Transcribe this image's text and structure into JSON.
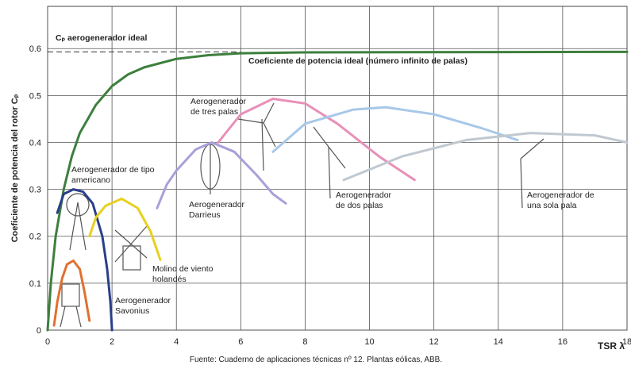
{
  "chart_data": {
    "type": "line",
    "ylabel": "Coeficiente de potencia del rotor Cₚ",
    "xlabel": "TSR λ",
    "source": "Fuente: Cuaderno de aplicaciones técnicas nº 12. Plantas eólicas, ABB.",
    "xlim": [
      0,
      18
    ],
    "xticks": [
      0,
      2,
      4,
      6,
      8,
      10,
      12,
      14,
      16,
      18
    ],
    "ylim": [
      0,
      0.69
    ],
    "yticks": [
      0,
      0.1,
      0.2,
      0.3,
      0.4,
      0.5,
      0.6
    ],
    "grid": true,
    "annotation": {
      "text": "Cₚ aerogenerador ideal",
      "value": 0.593
    },
    "series": [
      {
        "name": "Coeficiente de potencia ideal (número infinito de palas)",
        "color": "#3d7f3d",
        "x": [
          0,
          0.1,
          0.25,
          0.5,
          0.75,
          1,
          1.5,
          2,
          2.5,
          3,
          4,
          5,
          6,
          8,
          18
        ],
        "values": [
          0,
          0.1,
          0.2,
          0.3,
          0.37,
          0.42,
          0.48,
          0.52,
          0.545,
          0.56,
          0.578,
          0.586,
          0.59,
          0.592,
          0.593
        ]
      },
      {
        "name": "Aerogenerador Savonius",
        "color": "#e07030",
        "x": [
          0.2,
          0.3,
          0.45,
          0.6,
          0.8,
          1.0,
          1.15,
          1.3
        ],
        "values": [
          0.01,
          0.06,
          0.11,
          0.14,
          0.148,
          0.13,
          0.08,
          0.02
        ]
      },
      {
        "name": "Aerogenerador de tipo americano",
        "color": "#2a3f8a",
        "x": [
          0.3,
          0.5,
          0.8,
          1.1,
          1.4,
          1.7,
          1.85,
          1.95,
          2.0
        ],
        "values": [
          0.25,
          0.29,
          0.3,
          0.295,
          0.27,
          0.2,
          0.13,
          0.06,
          0
        ]
      },
      {
        "name": "Molino de viento holandés",
        "color": "#e6d020",
        "x": [
          1.3,
          1.5,
          1.8,
          2.3,
          2.8,
          3.2,
          3.5
        ],
        "values": [
          0.2,
          0.24,
          0.265,
          0.28,
          0.26,
          0.21,
          0.15
        ]
      },
      {
        "name": "Aerogenerador Darrieus",
        "color": "#a8a0d8",
        "x": [
          3.4,
          3.7,
          4.0,
          4.6,
          5.1,
          5.8,
          6.5,
          7.0,
          7.4
        ],
        "values": [
          0.26,
          0.31,
          0.34,
          0.385,
          0.4,
          0.38,
          0.33,
          0.29,
          0.27
        ]
      },
      {
        "name": "Aerogenerador de tres palas",
        "color": "#e890b8",
        "x": [
          5.3,
          6.0,
          7.0,
          8.0,
          9.0,
          10.3,
          11.4
        ],
        "values": [
          0.4,
          0.46,
          0.493,
          0.483,
          0.44,
          0.37,
          0.32
        ]
      },
      {
        "name": "Aerogenerador de dos palas",
        "color": "#a8c8e8",
        "x": [
          7.0,
          8.0,
          9.5,
          10.5,
          12.0,
          13.5,
          14.6
        ],
        "values": [
          0.38,
          0.44,
          0.47,
          0.475,
          0.46,
          0.43,
          0.405
        ]
      },
      {
        "name": "Aerogenerador de una sola pala",
        "color": "#c0c8d0",
        "x": [
          9.2,
          11.0,
          13.0,
          15.0,
          17.0,
          18.0
        ],
        "values": [
          0.32,
          0.37,
          0.405,
          0.42,
          0.415,
          0.4
        ]
      }
    ]
  }
}
